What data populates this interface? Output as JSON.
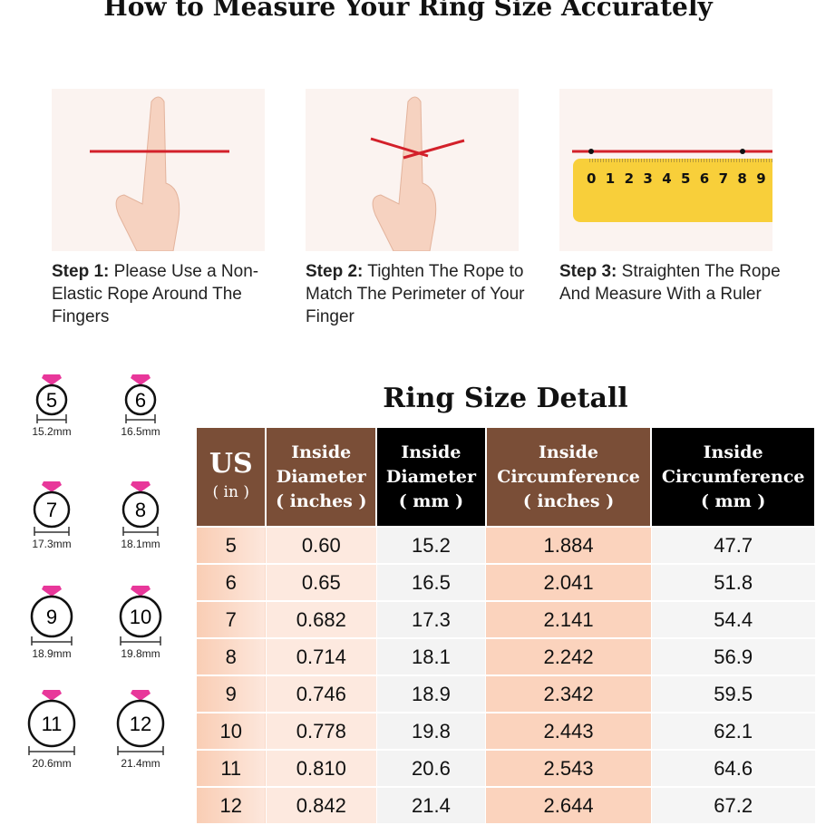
{
  "title": "How to Measure Your Ring Size Accurately",
  "steps": [
    {
      "label": "Step 1:",
      "text": "Please Use a Non-Elastic Rope Around The Fingers"
    },
    {
      "label": "Step 2:",
      "text": "Tighten The Rope to Match The Perimeter of Your Finger"
    },
    {
      "label": "Step 3:",
      "text": "Straighten The Rope And Measure With a Ruler"
    }
  ],
  "ruler_digits": [
    "0",
    "1",
    "2",
    "3",
    "4",
    "5",
    "6",
    "7",
    "8",
    "9"
  ],
  "rings": [
    {
      "size": "5",
      "mm": "15.2mm"
    },
    {
      "size": "6",
      "mm": "16.5mm"
    },
    {
      "size": "7",
      "mm": "17.3mm"
    },
    {
      "size": "8",
      "mm": "18.1mm"
    },
    {
      "size": "9",
      "mm": "18.9mm"
    },
    {
      "size": "10",
      "mm": "19.8mm"
    },
    {
      "size": "11",
      "mm": "20.6mm"
    },
    {
      "size": "12",
      "mm": "21.4mm"
    }
  ],
  "table": {
    "title": "Ring Size Detall",
    "headers": [
      {
        "main": "US",
        "sub": "( in )"
      },
      {
        "main": "Inside Diameter",
        "sub": "( inches )"
      },
      {
        "main": "Inside Diameter",
        "sub": "( mm )"
      },
      {
        "main": "Inside Circumference",
        "sub": "( inches )"
      },
      {
        "main": "Inside Circumference",
        "sub": "( mm )"
      }
    ],
    "rows": [
      [
        "5",
        "0.60",
        "15.2",
        "1.884",
        "47.7"
      ],
      [
        "6",
        "0.65",
        "16.5",
        "2.041",
        "51.8"
      ],
      [
        "7",
        "0.682",
        "17.3",
        "2.141",
        "54.4"
      ],
      [
        "8",
        "0.714",
        "18.1",
        "2.242",
        "56.9"
      ],
      [
        "9",
        "0.746",
        "18.9",
        "2.342",
        "59.5"
      ],
      [
        "10",
        "0.778",
        "19.8",
        "2.443",
        "62.1"
      ],
      [
        "11",
        "0.810",
        "20.6",
        "2.543",
        "64.6"
      ],
      [
        "12",
        "0.842",
        "21.4",
        "2.644",
        "67.2"
      ]
    ]
  },
  "colors": {
    "brown": "#7a4e37",
    "black": "#000000",
    "peach": "#fbd3bd",
    "rope": "#d3202a",
    "ruler": "#f8cf3a",
    "gem": "#e8379a"
  }
}
